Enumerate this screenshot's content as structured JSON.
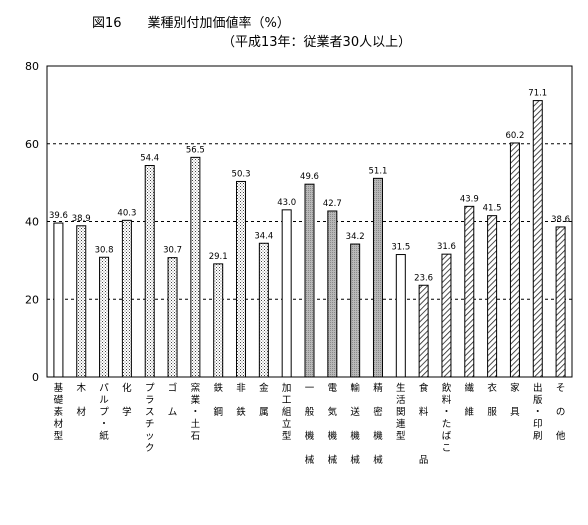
{
  "chart_data": {
    "type": "bar",
    "title": "図16　　業種別付加価値率（%）",
    "subtitle": "（平成13年：従業者30人以上）",
    "ylim": [
      0,
      80
    ],
    "yticks": [
      0,
      20,
      40,
      60,
      80
    ],
    "grid": "dashed horizontal at 20, 40, 60",
    "categories": [
      "基礎素材型",
      "木材",
      "パルプ・紙",
      "化学",
      "プラスチック",
      "ゴム",
      "窯業・土石",
      "鉄鋼",
      "非鉄",
      "金属",
      "加工組立型",
      "一般機械",
      "電気機械",
      "輸送機械",
      "精密機械",
      "生活関連型",
      "食料品",
      "飲料・たばこ",
      "繊維",
      "衣服",
      "家具",
      "出版・印刷",
      "その他"
    ],
    "category_labels": [
      "基\n礎\n素\n材\n型",
      "木\n\n材",
      "パ\nル\nプ\n・\n紙",
      "化\n\n学",
      "プ\nラ\nス\nチ\nッ\nク",
      "ゴ\n\nム",
      "窯\n業\n・\n土\n石",
      "鉄\n\n鋼",
      "非\n\n鉄",
      "金\n\n属",
      "加\n工\n組\n立\n型",
      "一\n\n般\n\n機\n\n械",
      "電\n\n気\n\n機\n\n械",
      "輸\n\n送\n\n機\n\n械",
      "精\n\n密\n\n機\n\n械",
      "生\n活\n関\n連\n型",
      "食\n\n料\n\n\n\n品",
      "飲\n料\n・\nた\nば\nこ",
      "繊\n\n維",
      "衣\n\n服",
      "家\n\n具",
      "出\n版\n・\n印\n刷",
      "そ\n\nの\n\n他"
    ],
    "values": [
      39.6,
      38.9,
      30.8,
      40.3,
      54.4,
      30.7,
      56.5,
      29.1,
      50.3,
      34.4,
      43.0,
      49.6,
      42.7,
      34.2,
      51.1,
      31.5,
      23.6,
      31.6,
      43.9,
      41.5,
      60.2,
      71.1,
      38.6
    ],
    "value_labels": [
      "39.6",
      "38.9",
      "30.8",
      "40.3",
      "54.4",
      "30.7",
      "56.5",
      "29.1",
      "50.3",
      "34.4",
      "43.0",
      "49.6",
      "42.7",
      "34.2",
      "51.1",
      "31.5",
      "23.6",
      "31.6",
      "43.9",
      "41.5",
      "60.2",
      "71.1",
      "38.6"
    ],
    "groups": [
      "basic-total",
      "basic",
      "basic",
      "basic",
      "basic",
      "basic",
      "basic",
      "basic",
      "basic",
      "basic",
      "assembly-total",
      "assembly",
      "assembly",
      "assembly",
      "assembly",
      "living-total",
      "living",
      "living",
      "living",
      "living",
      "living",
      "living",
      "living"
    ],
    "fills": {
      "basic-total": "white",
      "basic": "dotted",
      "assembly-total": "white",
      "assembly": "gray",
      "living-total": "white",
      "living": "hatched"
    }
  }
}
